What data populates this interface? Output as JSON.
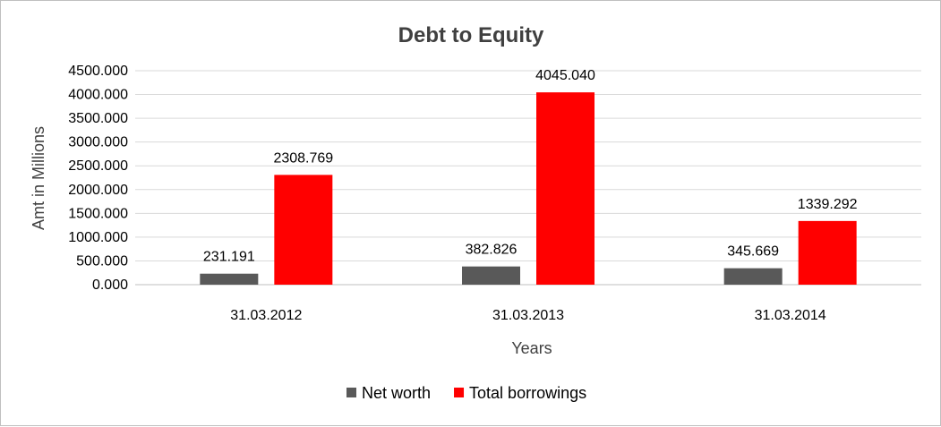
{
  "chart_data": {
    "type": "bar",
    "title": "Debt to Equity",
    "xlabel": "Years",
    "ylabel": "Amt in Millions",
    "categories": [
      "31.03.2012",
      "31.03.2013",
      "31.03.2014"
    ],
    "series": [
      {
        "name": "Net worth",
        "values": [
          231.191,
          382.826,
          345.669
        ],
        "labels": [
          "231.191",
          "382.826",
          "345.669"
        ],
        "color": "#595959"
      },
      {
        "name": "Total borrowings",
        "values": [
          2308.769,
          4045.04,
          1339.292
        ],
        "labels": [
          "2308.769",
          "4045.040",
          "1339.292"
        ],
        "color": "#ff0000"
      }
    ],
    "ylim": [
      0,
      4500
    ],
    "yticks": [
      "0.000",
      "500.000",
      "1000.000",
      "1500.000",
      "2000.000",
      "2500.000",
      "3000.000",
      "3500.000",
      "4000.000",
      "4500.000"
    ],
    "grid": true,
    "legend_position": "bottom"
  }
}
